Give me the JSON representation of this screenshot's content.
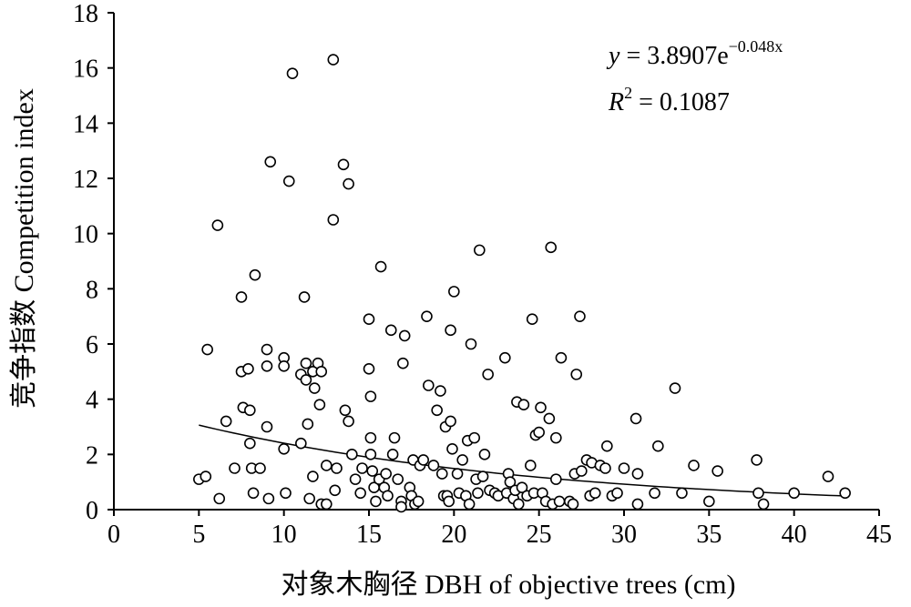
{
  "chart_data": {
    "type": "scatter",
    "title": "",
    "xlabel": "对象木胸径 DBH of objective trees (cm)",
    "ylabel": "竞争指数 Competition index",
    "xlim": [
      0,
      45
    ],
    "ylim": [
      0,
      18
    ],
    "x_ticks": [
      "0",
      "5",
      "10",
      "15",
      "20",
      "25",
      "30",
      "35",
      "40",
      "45"
    ],
    "y_ticks": [
      "0",
      "2",
      "4",
      "6",
      "8",
      "10",
      "12",
      "14",
      "16",
      "18"
    ],
    "grid": false,
    "equation": {
      "y_var": "y",
      "eq_text": " = 3.8907e",
      "exponent": "−0.048x",
      "r2_var": "R",
      "r2_sup": "2",
      "r2_text": " = 0.1087"
    },
    "fit_curve": {
      "a": 3.8907,
      "b": -0.048,
      "x_range": [
        5.0,
        43.0
      ]
    },
    "points": [
      [
        5.0,
        1.1
      ],
      [
        5.4,
        1.2
      ],
      [
        5.5,
        5.8
      ],
      [
        6.1,
        10.3
      ],
      [
        6.2,
        0.4
      ],
      [
        6.6,
        3.2
      ],
      [
        7.1,
        1.5
      ],
      [
        7.5,
        7.7
      ],
      [
        7.5,
        5.0
      ],
      [
        7.6,
        3.7
      ],
      [
        7.9,
        5.1
      ],
      [
        8.0,
        3.6
      ],
      [
        8.0,
        2.4
      ],
      [
        8.1,
        1.5
      ],
      [
        8.2,
        0.6
      ],
      [
        8.3,
        8.5
      ],
      [
        8.6,
        1.5
      ],
      [
        9.0,
        5.8
      ],
      [
        9.0,
        5.2
      ],
      [
        9.0,
        3.0
      ],
      [
        9.1,
        0.4
      ],
      [
        9.2,
        12.6
      ],
      [
        10.0,
        5.5
      ],
      [
        10.0,
        5.2
      ],
      [
        10.0,
        2.2
      ],
      [
        10.1,
        0.6
      ],
      [
        10.3,
        11.9
      ],
      [
        10.5,
        15.8
      ],
      [
        11.0,
        4.9
      ],
      [
        11.0,
        2.4
      ],
      [
        11.2,
        7.7
      ],
      [
        11.3,
        5.3
      ],
      [
        11.3,
        4.7
      ],
      [
        11.4,
        3.1
      ],
      [
        11.5,
        0.4
      ],
      [
        11.7,
        5.0
      ],
      [
        11.7,
        1.2
      ],
      [
        11.8,
        4.4
      ],
      [
        12.0,
        5.3
      ],
      [
        12.1,
        3.8
      ],
      [
        12.2,
        5.0
      ],
      [
        12.2,
        0.2
      ],
      [
        12.5,
        1.6
      ],
      [
        12.5,
        0.2
      ],
      [
        12.9,
        10.5
      ],
      [
        12.9,
        16.3
      ],
      [
        13.0,
        0.7
      ],
      [
        13.1,
        1.5
      ],
      [
        13.5,
        12.5
      ],
      [
        13.6,
        3.6
      ],
      [
        13.8,
        3.2
      ],
      [
        13.8,
        11.8
      ],
      [
        14.0,
        2.0
      ],
      [
        14.2,
        1.1
      ],
      [
        14.5,
        0.6
      ],
      [
        14.6,
        1.5
      ],
      [
        15.0,
        6.9
      ],
      [
        15.0,
        5.1
      ],
      [
        15.1,
        4.1
      ],
      [
        15.1,
        2.6
      ],
      [
        15.1,
        2.0
      ],
      [
        15.2,
        1.4
      ],
      [
        15.3,
        0.8
      ],
      [
        15.4,
        0.3
      ],
      [
        15.6,
        1.1
      ],
      [
        15.7,
        8.8
      ],
      [
        15.9,
        0.8
      ],
      [
        16.0,
        1.3
      ],
      [
        16.1,
        0.5
      ],
      [
        16.3,
        6.5
      ],
      [
        16.4,
        2.0
      ],
      [
        16.5,
        2.6
      ],
      [
        16.7,
        1.1
      ],
      [
        16.9,
        0.3
      ],
      [
        16.9,
        0.1
      ],
      [
        17.0,
        5.3
      ],
      [
        17.1,
        6.3
      ],
      [
        17.4,
        0.8
      ],
      [
        17.5,
        0.5
      ],
      [
        17.6,
        1.8
      ],
      [
        17.7,
        0.2
      ],
      [
        17.9,
        0.3
      ],
      [
        18.0,
        1.6
      ],
      [
        18.2,
        1.8
      ],
      [
        18.4,
        7.0
      ],
      [
        18.5,
        4.5
      ],
      [
        18.8,
        1.6
      ],
      [
        19.0,
        3.6
      ],
      [
        19.2,
        4.3
      ],
      [
        19.3,
        1.3
      ],
      [
        19.4,
        0.5
      ],
      [
        19.5,
        3.0
      ],
      [
        19.6,
        0.5
      ],
      [
        19.7,
        0.3
      ],
      [
        19.8,
        3.2
      ],
      [
        19.8,
        6.5
      ],
      [
        19.9,
        2.2
      ],
      [
        20.0,
        7.9
      ],
      [
        20.2,
        1.3
      ],
      [
        20.3,
        0.6
      ],
      [
        20.5,
        1.8
      ],
      [
        20.7,
        0.5
      ],
      [
        20.8,
        2.5
      ],
      [
        20.9,
        0.2
      ],
      [
        21.0,
        6.0
      ],
      [
        21.2,
        2.6
      ],
      [
        21.3,
        1.1
      ],
      [
        21.4,
        0.6
      ],
      [
        21.5,
        9.4
      ],
      [
        21.7,
        1.2
      ],
      [
        21.8,
        2.0
      ],
      [
        22.0,
        4.9
      ],
      [
        22.1,
        0.7
      ],
      [
        22.4,
        0.6
      ],
      [
        22.6,
        0.5
      ],
      [
        23.0,
        5.5
      ],
      [
        23.1,
        0.6
      ],
      [
        23.2,
        1.3
      ],
      [
        23.3,
        1.0
      ],
      [
        23.5,
        0.4
      ],
      [
        23.6,
        0.7
      ],
      [
        23.7,
        3.9
      ],
      [
        23.8,
        0.2
      ],
      [
        24.0,
        0.8
      ],
      [
        24.1,
        3.8
      ],
      [
        24.3,
        0.5
      ],
      [
        24.5,
        1.6
      ],
      [
        24.6,
        6.9
      ],
      [
        24.7,
        0.6
      ],
      [
        24.8,
        2.7
      ],
      [
        25.0,
        2.8
      ],
      [
        25.1,
        3.7
      ],
      [
        25.2,
        0.6
      ],
      [
        25.4,
        0.3
      ],
      [
        25.6,
        3.3
      ],
      [
        25.7,
        9.5
      ],
      [
        25.8,
        0.2
      ],
      [
        26.0,
        2.6
      ],
      [
        26.0,
        1.1
      ],
      [
        26.2,
        0.3
      ],
      [
        26.3,
        5.5
      ],
      [
        26.8,
        0.3
      ],
      [
        27.0,
        0.2
      ],
      [
        27.1,
        1.3
      ],
      [
        27.2,
        4.9
      ],
      [
        27.4,
        7.0
      ],
      [
        27.5,
        1.4
      ],
      [
        27.8,
        1.8
      ],
      [
        28.0,
        0.5
      ],
      [
        28.1,
        1.7
      ],
      [
        28.3,
        0.6
      ],
      [
        28.6,
        1.6
      ],
      [
        28.9,
        1.5
      ],
      [
        29.0,
        2.3
      ],
      [
        29.3,
        0.5
      ],
      [
        29.6,
        0.6
      ],
      [
        30.0,
        1.5
      ],
      [
        30.7,
        3.3
      ],
      [
        30.8,
        1.3
      ],
      [
        30.8,
        0.2
      ],
      [
        31.8,
        0.6
      ],
      [
        32.0,
        2.3
      ],
      [
        33.0,
        4.4
      ],
      [
        33.4,
        0.6
      ],
      [
        34.1,
        1.6
      ],
      [
        35.0,
        0.3
      ],
      [
        35.5,
        1.4
      ],
      [
        37.8,
        1.8
      ],
      [
        37.9,
        0.6
      ],
      [
        38.2,
        0.2
      ],
      [
        40.0,
        0.6
      ],
      [
        42.0,
        1.2
      ],
      [
        43.0,
        0.6
      ]
    ]
  }
}
